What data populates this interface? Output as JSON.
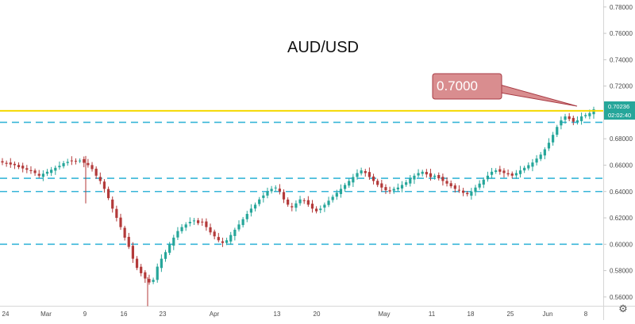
{
  "chart_data": {
    "type": "candlestick",
    "title": "AUD/USD",
    "ylim": [
      0.55,
      0.785
    ],
    "y_ticks": [
      "0.78000",
      "0.76000",
      "0.74000",
      "0.72000",
      "0.70000",
      "0.68000",
      "0.66000",
      "0.64000",
      "0.62000",
      "0.60000",
      "0.58000",
      "0.56000"
    ],
    "x_ticks": [
      "24",
      "Mar",
      "9",
      "16",
      "23",
      "Apr",
      "13",
      "20",
      "May",
      "11",
      "18",
      "25",
      "Jun",
      "8"
    ],
    "price_label": "0.70236",
    "countdown_label": "02:02:40",
    "callout_label": "0.7000",
    "resistance_level": 0.7,
    "dashed_levels": [
      0.6925,
      0.65,
      0.64,
      0.6
    ],
    "colors": {
      "up": "#26a69a",
      "down": "#b33a3a",
      "resistance": "#f5d800",
      "dashed": "#38b6d8",
      "callout_fill": "#d98d8f",
      "callout_border": "#a83b44",
      "price_badge": "#26a69a"
    },
    "series": [
      {
        "values": [
          0.662,
          0.661,
          0.6605,
          0.66,
          0.6585,
          0.6575,
          0.6565,
          0.6555,
          0.654,
          0.652,
          0.6535,
          0.655,
          0.6565,
          0.658,
          0.6595,
          0.6615,
          0.6625,
          0.6632,
          0.6628,
          0.6635,
          0.6618,
          0.66,
          0.657,
          0.652,
          0.648,
          0.642,
          0.635,
          0.627,
          0.62,
          0.613,
          0.605,
          0.598,
          0.589,
          0.582,
          0.578,
          0.574,
          0.571,
          0.573,
          0.583,
          0.589,
          0.594,
          0.6,
          0.605,
          0.61,
          0.613,
          0.615,
          0.617,
          0.618,
          0.616,
          0.617,
          0.613,
          0.609,
          0.606,
          0.603,
          0.601,
          0.603,
          0.607,
          0.611,
          0.615,
          0.619,
          0.623,
          0.627,
          0.63,
          0.634,
          0.637,
          0.64,
          0.642,
          0.643,
          0.64,
          0.634,
          0.63,
          0.628,
          0.631,
          0.634,
          0.633,
          0.63,
          0.627,
          0.625,
          0.627,
          0.63,
          0.633,
          0.636,
          0.639,
          0.642,
          0.645,
          0.648,
          0.651,
          0.654,
          0.656,
          0.654,
          0.651,
          0.648,
          0.645,
          0.643,
          0.641,
          0.64,
          0.642,
          0.643,
          0.645,
          0.647,
          0.65,
          0.652,
          0.654,
          0.655,
          0.653,
          0.651,
          0.652,
          0.65,
          0.648,
          0.646,
          0.644,
          0.642,
          0.641,
          0.639,
          0.638,
          0.64,
          0.643,
          0.646,
          0.649,
          0.652,
          0.655,
          0.656,
          0.655,
          0.654,
          0.653,
          0.652,
          0.654,
          0.656,
          0.658,
          0.66,
          0.662,
          0.665,
          0.668,
          0.672,
          0.677,
          0.683,
          0.689,
          0.694,
          0.697,
          0.695,
          0.693,
          0.694,
          0.697,
          0.698,
          0.6995,
          0.70236
        ]
      }
    ]
  }
}
